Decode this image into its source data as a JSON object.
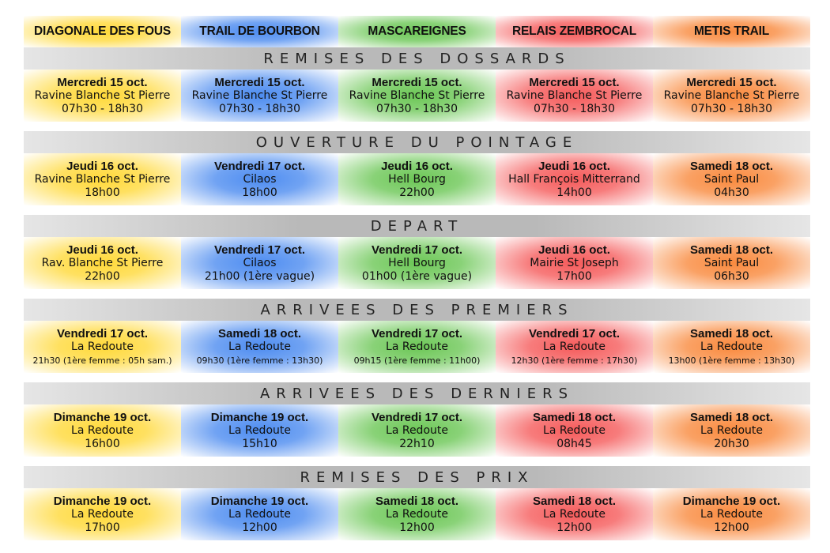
{
  "columns": [
    {
      "name": "DIAGONALE DES FOUS",
      "color": "#ffd93a"
    },
    {
      "name": "TRAIL DE BOURBON",
      "color": "#4d8cf0"
    },
    {
      "name": "MASCAREIGNES",
      "color": "#6cc756"
    },
    {
      "name": "RELAIS ZEMBROCAL",
      "color": "#f55b5b"
    },
    {
      "name": "METIS TRAIL",
      "color": "#f98a3e"
    }
  ],
  "sections": [
    {
      "title": "REMISES DES DOSSARDS",
      "cells": [
        {
          "date": "Mercredi 15 oct.",
          "place": "Ravine Blanche St Pierre",
          "time": "07h30 - 18h30"
        },
        {
          "date": "Mercredi 15 oct.",
          "place": "Ravine Blanche St Pierre",
          "time": "07h30 - 18h30"
        },
        {
          "date": "Mercredi 15 oct.",
          "place": "Ravine Blanche St Pierre",
          "time": "07h30 - 18h30"
        },
        {
          "date": "Mercredi 15 oct.",
          "place": "Ravine Blanche St Pierre",
          "time": "07h30 - 18h30"
        },
        {
          "date": "Mercredi 15 oct.",
          "place": "Ravine Blanche St Pierre",
          "time": "07h30 - 18h30"
        }
      ]
    },
    {
      "title": "OUVERTURE DU POINTAGE",
      "cells": [
        {
          "date": "Jeudi 16 oct.",
          "place": "Ravine Blanche St Pierre",
          "time": "18h00"
        },
        {
          "date": "Vendredi 17 oct.",
          "place": "Cilaos",
          "time": "18h00"
        },
        {
          "date": "Jeudi 16 oct.",
          "place": "Hell Bourg",
          "time": "22h00"
        },
        {
          "date": "Jeudi 16 oct.",
          "place": "Hall François Mitterrand",
          "time": "14h00"
        },
        {
          "date": "Samedi 18 oct.",
          "place": "Saint Paul",
          "time": "04h30"
        }
      ]
    },
    {
      "title": "DEPART",
      "cells": [
        {
          "date": "Jeudi 16 oct.",
          "place": "Rav. Blanche St Pierre",
          "time": "22h00"
        },
        {
          "date": "Vendredi 17 oct.",
          "place": "Cilaos",
          "time": "21h00 (1ère vague)"
        },
        {
          "date": "Vendredi 17 oct.",
          "place": "Hell Bourg",
          "time": "01h00  (1ère vague)"
        },
        {
          "date": "Jeudi 16 oct.",
          "place": "Mairie St Joseph",
          "time": "17h00"
        },
        {
          "date": "Samedi 18 oct.",
          "place": "Saint Paul",
          "time": "06h30"
        }
      ]
    },
    {
      "title": "ARRIVEES DES PREMIERS",
      "cells": [
        {
          "date": "Vendredi 17 oct.",
          "place": "La Redoute",
          "time": "21h30 (1ère femme : 05h sam.)"
        },
        {
          "date": "Samedi 18 oct.",
          "place": "La Redoute",
          "time": "09h30 (1ère femme : 13h30)"
        },
        {
          "date": "Vendredi 17 oct.",
          "place": "La Redoute",
          "time": "09h15 (1ère femme : 11h00)"
        },
        {
          "date": "Vendredi 17 oct.",
          "place": "La Redoute",
          "time": "12h30 (1ère femme : 17h30)"
        },
        {
          "date": "Samedi 18 oct.",
          "place": "La Redoute",
          "time": "13h00 (1ère femme : 13h30)"
        }
      ]
    },
    {
      "title": "ARRIVEES DES DERNIERS",
      "cells": [
        {
          "date": "Dimanche 19 oct.",
          "place": "La Redoute",
          "time": "16h00"
        },
        {
          "date": "Dimanche 19 oct.",
          "place": "La Redoute",
          "time": "15h10"
        },
        {
          "date": "Vendredi 17 oct.",
          "place": "La Redoute",
          "time": "22h10"
        },
        {
          "date": "Samedi 18 oct.",
          "place": "La Redoute",
          "time": "08h45"
        },
        {
          "date": "Samedi 18 oct.",
          "place": "La Redoute",
          "time": "20h30"
        }
      ]
    },
    {
      "title": "REMISES DES PRIX",
      "cells": [
        {
          "date": "Dimanche 19 oct.",
          "place": "La Redoute",
          "time": "17h00"
        },
        {
          "date": "Dimanche 19 oct.",
          "place": "La Redoute",
          "time": "12h00"
        },
        {
          "date": "Samedi 18 oct.",
          "place": "La Redoute",
          "time": "12h00"
        },
        {
          "date": "Samedi 18 oct.",
          "place": "La Redoute",
          "time": "12h00"
        },
        {
          "date": "Dimanche 19 oct.",
          "place": "La Redoute",
          "time": "12h00"
        }
      ]
    }
  ]
}
